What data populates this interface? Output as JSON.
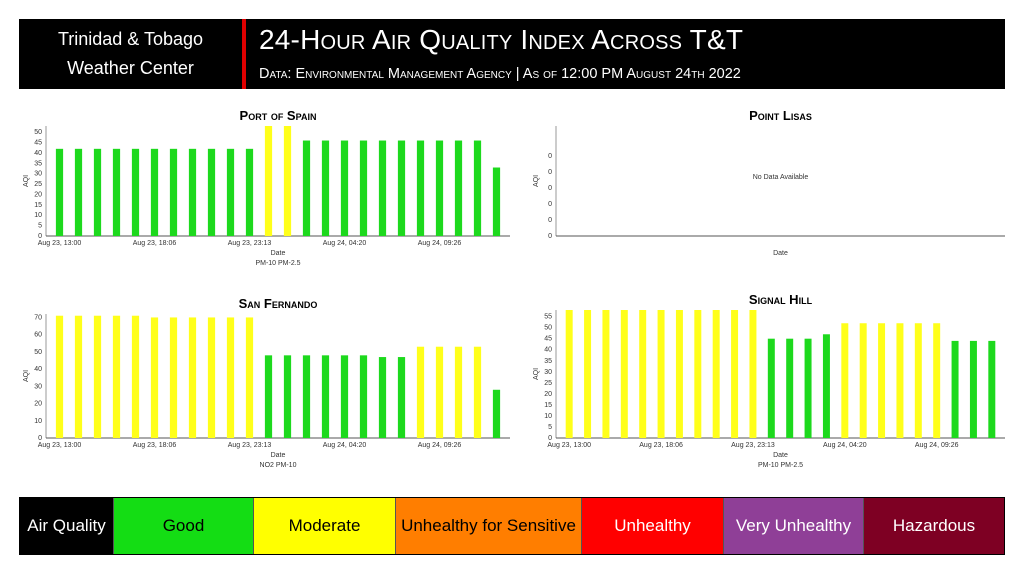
{
  "header": {
    "brand_line1": "Trinidad & Tobago",
    "brand_line2": "Weather Center",
    "title": "24-Hour Air Quality Index Across T&T",
    "subtitle": "Data: Environmental Management Agency | As of 12:00 PM August 24th 2022",
    "accent_color": "#e00000"
  },
  "colors": {
    "good": "#1dd91d",
    "moderate": "#ffff1a"
  },
  "chart_data": [
    {
      "type": "bar",
      "title": "Port of Spain",
      "xlabel": "Date",
      "ylabel": "AQI",
      "ylim": [
        0,
        53
      ],
      "yticks": [
        0,
        5,
        10,
        15,
        20,
        25,
        30,
        35,
        40,
        45,
        50
      ],
      "tick_labels": [
        "Aug 23, 13:00",
        "Aug 23, 18:06",
        "Aug 23, 23:13",
        "Aug 24, 04:20",
        "Aug 24, 09:26"
      ],
      "legend": [
        "PM-10",
        "PM-2.5"
      ],
      "values": [
        42,
        42,
        42,
        42,
        42,
        42,
        42,
        42,
        42,
        42,
        42,
        53,
        53,
        46,
        46,
        46,
        46,
        46,
        46,
        46,
        46,
        46,
        46,
        33
      ],
      "categories_color": [
        "good",
        "good",
        "good",
        "good",
        "good",
        "good",
        "good",
        "good",
        "good",
        "good",
        "good",
        "moderate",
        "moderate",
        "good",
        "good",
        "good",
        "good",
        "good",
        "good",
        "good",
        "good",
        "good",
        "good",
        "good"
      ]
    },
    {
      "type": "bar",
      "title": "Point Lisas",
      "xlabel": "Date",
      "ylabel": "AQI",
      "yticks": [
        "0",
        "0",
        "0",
        "0",
        "0",
        "0"
      ],
      "legend": [],
      "annotation": "No Data Available",
      "values": [],
      "categories_color": []
    },
    {
      "type": "bar",
      "title": "San Fernando",
      "xlabel": "Date",
      "ylabel": "AQI",
      "ylim": [
        0,
        72
      ],
      "yticks": [
        0,
        10,
        20,
        30,
        40,
        50,
        60,
        70
      ],
      "tick_labels": [
        "Aug 23, 13:00",
        "Aug 23, 18:06",
        "Aug 23, 23:13",
        "Aug 24, 04:20",
        "Aug 24, 09:26"
      ],
      "legend": [
        "NO2",
        "PM-10"
      ],
      "values": [
        71,
        71,
        71,
        71,
        71,
        70,
        70,
        70,
        70,
        70,
        70,
        48,
        48,
        48,
        48,
        48,
        48,
        47,
        47,
        53,
        53,
        53,
        53,
        28
      ],
      "categories_color": [
        "moderate",
        "moderate",
        "moderate",
        "moderate",
        "moderate",
        "moderate",
        "moderate",
        "moderate",
        "moderate",
        "moderate",
        "moderate",
        "good",
        "good",
        "good",
        "good",
        "good",
        "good",
        "good",
        "good",
        "moderate",
        "moderate",
        "moderate",
        "moderate",
        "good"
      ]
    },
    {
      "type": "bar",
      "title": "Signal Hill",
      "xlabel": "Date",
      "ylabel": "AQI",
      "ylim": [
        0,
        58
      ],
      "yticks": [
        0,
        5,
        10,
        15,
        20,
        25,
        30,
        35,
        40,
        45,
        50,
        55
      ],
      "tick_labels": [
        "Aug 23, 13:00",
        "Aug 23, 18:06",
        "Aug 23, 23:13",
        "Aug 24, 04:20",
        "Aug 24, 09:26"
      ],
      "legend": [
        "PM-10",
        "PM-2.5"
      ],
      "values": [
        58,
        58,
        58,
        58,
        58,
        58,
        58,
        58,
        58,
        58,
        58,
        45,
        45,
        45,
        47,
        52,
        52,
        52,
        52,
        52,
        52,
        44,
        44,
        44
      ],
      "categories_color": [
        "moderate",
        "moderate",
        "moderate",
        "moderate",
        "moderate",
        "moderate",
        "moderate",
        "moderate",
        "moderate",
        "moderate",
        "moderate",
        "good",
        "good",
        "good",
        "good",
        "moderate",
        "moderate",
        "moderate",
        "moderate",
        "moderate",
        "moderate",
        "good",
        "good",
        "good"
      ]
    }
  ],
  "legend_bar": [
    {
      "label": "Air Quality",
      "bg": "#000000",
      "fg": "#ffffff"
    },
    {
      "label": "Good",
      "bg": "#14dd14",
      "fg": "#000000"
    },
    {
      "label": "Moderate",
      "bg": "#ffff00",
      "fg": "#000000"
    },
    {
      "label": "Unhealthy for Sensitive",
      "bg": "#ff7e00",
      "fg": "#000000"
    },
    {
      "label": "Unhealthy",
      "bg": "#ff0000",
      "fg": "#ffffff"
    },
    {
      "label": "Very Unhealthy",
      "bg": "#8f3f97",
      "fg": "#ffffff"
    },
    {
      "label": "Hazardous",
      "bg": "#7e0023",
      "fg": "#ffffff"
    }
  ]
}
